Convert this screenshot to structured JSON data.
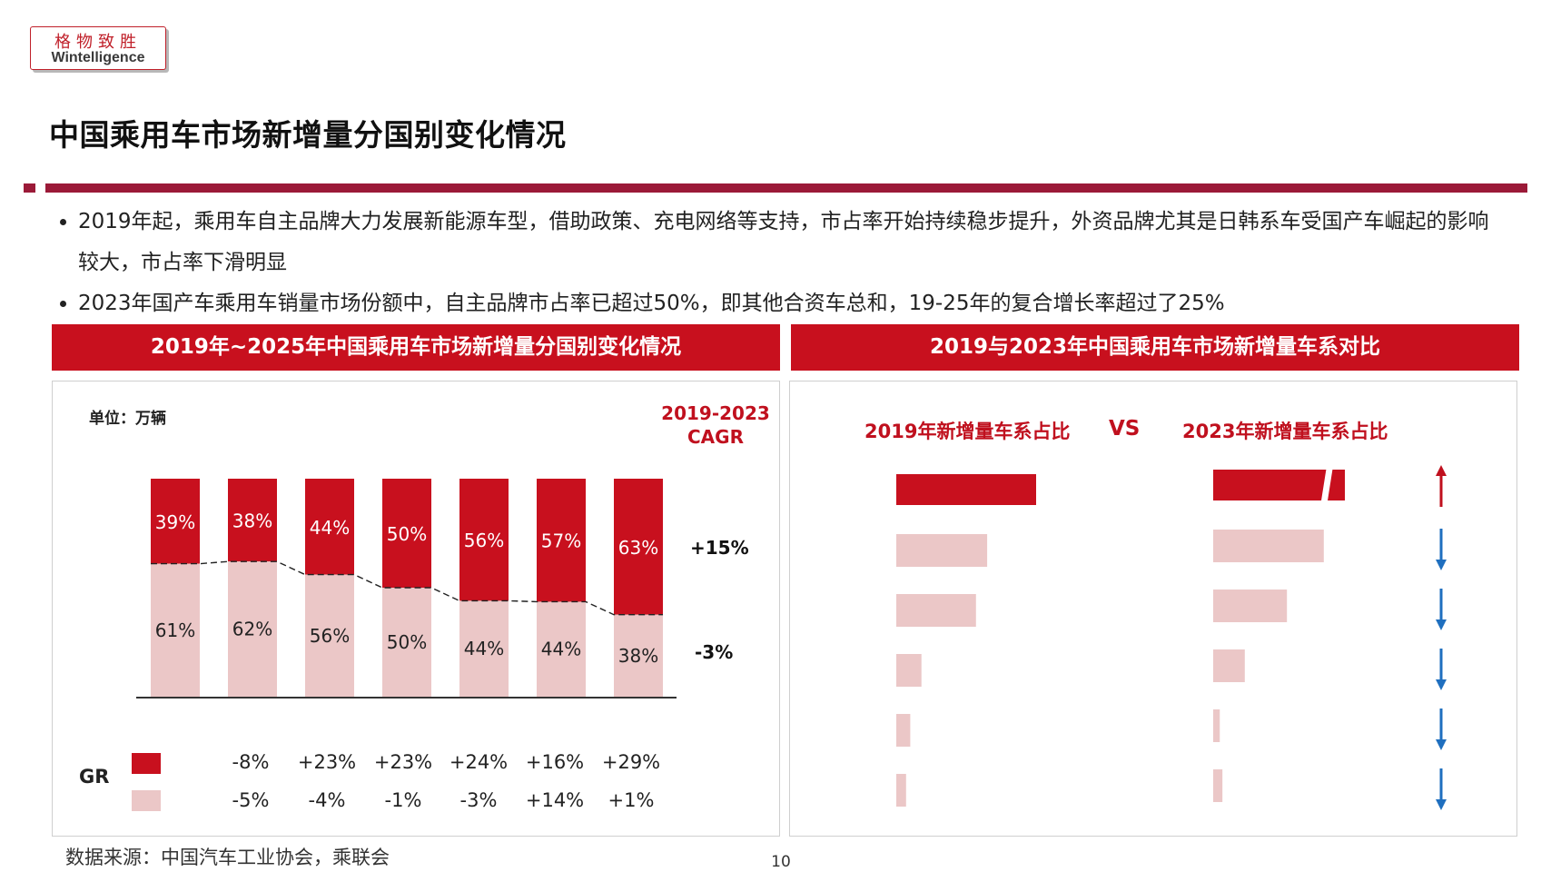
{
  "logo": {
    "cn": "格物致胜",
    "en": "Wintelligence"
  },
  "page_title": "中国乘用车市场新增量分国别变化情况",
  "bullets": [
    "2019年起，乘用车自主品牌大力发展新能源车型，借助政策、充电网络等支持，市占率开始持续稳步提升，外资品牌尤其是日韩系车受国产车崛起的影响较大，市占率下滑明显",
    "2023年国产车乘用车销量市场份额中，自主品牌市占率已超过50%，即其他合资车总和，19-25年的复合增长率超过了25%"
  ],
  "left_panel": {
    "header": "2019年~2025年中国乘用车市场新增量分国别变化情况",
    "unit": "单位：万辆",
    "cagr_title_line1": "2019-2023",
    "cagr_title_line2": "CAGR",
    "cagr_top": "+15%",
    "cagr_bottom": "-3%",
    "gr_label": "GR",
    "gr_top": [
      "-8%",
      "+23%",
      "+23%",
      "+24%",
      "+16%",
      "+29%"
    ],
    "gr_bottom": [
      "-5%",
      "-4%",
      "-1%",
      "-3%",
      "+14%",
      "+1%"
    ]
  },
  "right_panel": {
    "header": "2019与2023年中国乘用车市场新增量车系对比",
    "label_2019": "2019年新增量车系占比",
    "vs": "VS",
    "label_2023": "2023年新增量车系占比",
    "trend": [
      "up",
      "down",
      "down",
      "down",
      "down",
      "down"
    ]
  },
  "colors": {
    "dark": "#c8101e",
    "light": "#ebc7c7",
    "header": "#c8101e",
    "rule": "#9b1a38",
    "arrow_up": "#c0101e",
    "arrow_down": "#1f6fbf"
  },
  "chart_data": [
    {
      "type": "bar",
      "stacked": true,
      "normalized": true,
      "categories": [
        "",
        "",
        "",
        "",
        "",
        "",
        ""
      ],
      "series": [
        {
          "values": [
            39,
            38,
            44,
            50,
            56,
            57,
            63
          ],
          "color": "#c8101e"
        },
        {
          "values": [
            61,
            62,
            56,
            50,
            44,
            44,
            38
          ],
          "color": "#ebc7c7"
        }
      ],
      "unit": "%",
      "ylim": [
        0,
        100
      ],
      "grid": false,
      "legend": "none"
    },
    {
      "type": "bar",
      "orientation": "horizontal",
      "series": [
        {
          "name": "2019年新增量车系占比",
          "values": [
            1.0,
            0.65,
            0.57,
            0.18,
            0.1,
            0.07
          ]
        },
        {
          "name": "2023年新增量车系占比",
          "values": [
            1.0,
            0.84,
            0.56,
            0.24,
            0.05,
            0.07
          ]
        }
      ],
      "first_bar_2023_truncated": true
    }
  ],
  "footer": {
    "source": "数据来源：中国汽车工业协会，乘联会",
    "page": "10"
  }
}
